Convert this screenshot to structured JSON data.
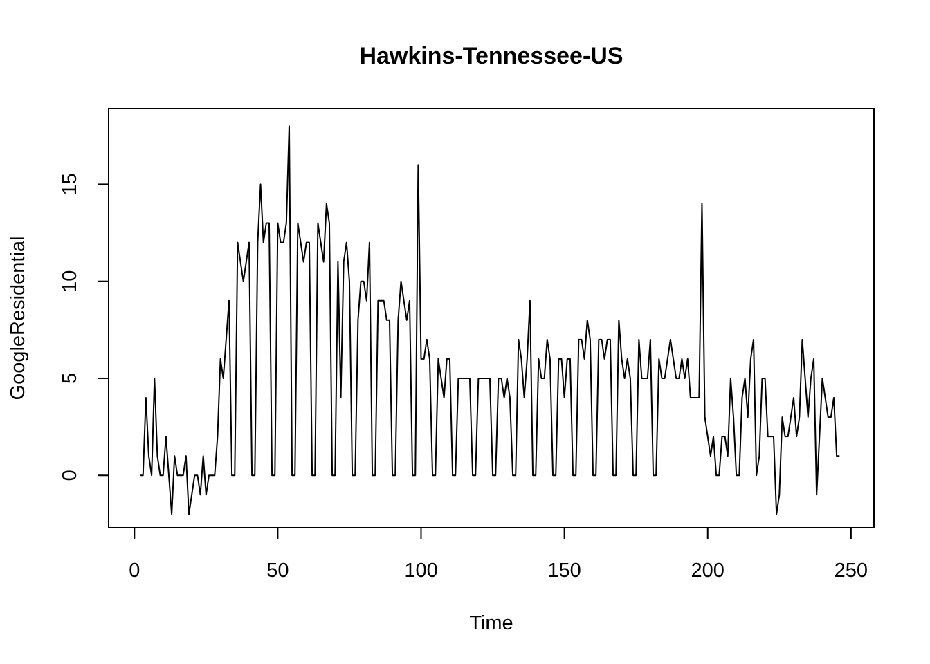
{
  "chart_data": {
    "type": "line",
    "title": "Hawkins-Tennessee-US",
    "xlabel": "Time",
    "ylabel": "GoogleResidential",
    "xlim": [
      -9,
      258
    ],
    "ylim": [
      -2.7,
      18.9
    ],
    "xticks": [
      0,
      50,
      100,
      150,
      200,
      250
    ],
    "yticks": [
      0,
      5,
      10,
      15
    ],
    "grid": false,
    "legend": "none",
    "series": [
      {
        "x_start": 2,
        "values": [
          0,
          0,
          4,
          1,
          0,
          5,
          1,
          0,
          0,
          2,
          0,
          -2,
          1,
          0,
          0,
          0,
          1,
          -2,
          -1,
          0,
          0,
          -1,
          1,
          -1,
          0,
          0,
          0,
          2,
          6,
          5,
          7,
          9,
          0,
          0,
          12,
          11,
          10,
          11,
          12,
          0,
          0,
          12,
          15,
          12,
          13,
          13,
          0,
          0,
          13,
          12,
          12,
          13,
          18,
          0,
          0,
          13,
          12,
          11,
          12,
          12,
          0,
          0,
          13,
          12,
          11,
          14,
          13,
          0,
          0,
          11,
          4,
          11,
          12,
          10,
          0,
          0,
          8,
          10,
          10,
          9,
          12,
          0,
          0,
          9,
          9,
          9,
          8,
          8,
          0,
          0,
          8,
          10,
          9,
          8,
          9,
          0,
          0,
          16,
          6,
          6,
          7,
          6,
          0,
          0,
          6,
          5,
          4,
          6,
          6,
          0,
          0,
          5,
          5,
          5,
          5,
          5,
          0,
          0,
          5,
          5,
          5,
          5,
          5,
          0,
          0,
          5,
          5,
          4,
          5,
          4,
          0,
          0,
          7,
          6,
          4,
          6,
          9,
          0,
          0,
          6,
          5,
          5,
          7,
          6,
          0,
          0,
          6,
          6,
          4,
          6,
          6,
          0,
          0,
          7,
          7,
          6,
          8,
          7,
          0,
          0,
          7,
          7,
          6,
          7,
          7,
          0,
          0,
          8,
          6,
          5,
          6,
          5,
          0,
          0,
          7,
          5,
          5,
          5,
          7,
          0,
          0,
          6,
          5,
          5,
          6,
          7,
          6,
          5,
          5,
          6,
          5,
          6,
          4,
          4,
          4,
          4,
          14,
          3,
          2,
          1,
          2,
          0,
          0,
          2,
          2,
          1,
          5,
          3,
          0,
          0,
          4,
          5,
          3,
          6,
          7,
          0,
          1,
          5,
          5,
          2,
          2,
          2,
          -2,
          -1,
          3,
          2,
          2,
          3,
          4,
          2,
          3,
          7,
          5,
          3,
          5,
          6,
          -1,
          2,
          5,
          4,
          3,
          3,
          4,
          1,
          1
        ]
      }
    ]
  }
}
